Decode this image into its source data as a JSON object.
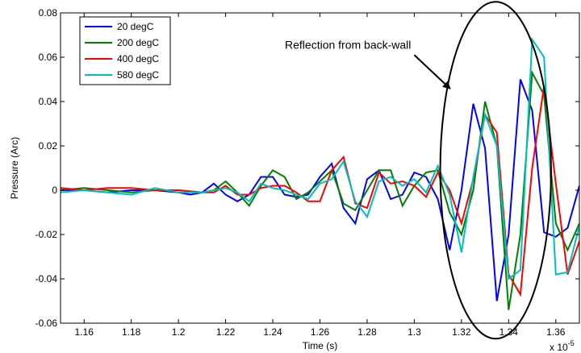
{
  "chart_data": {
    "type": "line",
    "xlabel": "Time (s)",
    "ylabel": "Pressure (Arc)",
    "x_multiplier_label": "x 10",
    "x_multiplier_exp": "-5",
    "xlim": [
      1.15,
      1.37
    ],
    "ylim": [
      -0.06,
      0.08
    ],
    "grid": false,
    "legend_position": "top-left",
    "xticks": [
      1.16,
      1.18,
      1.2,
      1.22,
      1.24,
      1.26,
      1.28,
      1.3,
      1.32,
      1.34,
      1.36
    ],
    "xtick_labels": [
      "1.16",
      "1.18",
      "1.2",
      "1.22",
      "1.24",
      "1.26",
      "1.28",
      "1.3",
      "1.32",
      "1.34",
      "1.36"
    ],
    "yticks": [
      -0.06,
      -0.04,
      -0.02,
      0,
      0.02,
      0.04,
      0.06,
      0.08
    ],
    "ytick_labels": [
      "-0.06",
      "-0.04",
      "-0.02",
      "0",
      "0.02",
      "0.04",
      "0.06",
      "0.08"
    ],
    "annotation": {
      "text": "Reflection from back-wall",
      "arrow_from": [
        1.3,
        0.061
      ],
      "arrow_to": [
        1.315,
        0.046
      ],
      "ellipse_center": [
        1.3345,
        0.009
      ],
      "ellipse_rx": 0.0235,
      "ellipse_ry": 0.076
    },
    "series": [
      {
        "name": "20 degC",
        "color": "#0000ff",
        "x": [
          1.15,
          1.16,
          1.17,
          1.18,
          1.19,
          1.2,
          1.205,
          1.21,
          1.215,
          1.22,
          1.225,
          1.23,
          1.235,
          1.24,
          1.245,
          1.25,
          1.255,
          1.26,
          1.265,
          1.27,
          1.275,
          1.28,
          1.285,
          1.29,
          1.295,
          1.3,
          1.305,
          1.31,
          1.315,
          1.32,
          1.325,
          1.33,
          1.335,
          1.34,
          1.345,
          1.35,
          1.355,
          1.36,
          1.365,
          1.37
        ],
        "y": [
          0.0,
          0.0,
          -0.001,
          0.0,
          0.0,
          -0.001,
          -0.002,
          -0.001,
          0.003,
          -0.002,
          -0.005,
          -0.002,
          0.006,
          0.006,
          -0.002,
          -0.003,
          -0.002,
          0.006,
          0.012,
          -0.008,
          -0.015,
          0.005,
          0.009,
          -0.004,
          -0.002,
          0.008,
          0.006,
          -0.004,
          -0.027,
          0.0,
          0.039,
          0.019,
          -0.05,
          -0.02,
          0.05,
          0.036,
          -0.019,
          -0.021,
          -0.017,
          0.002
        ]
      },
      {
        "name": "200 degC",
        "color": "#008000",
        "x": [
          1.15,
          1.16,
          1.17,
          1.18,
          1.19,
          1.2,
          1.21,
          1.215,
          1.22,
          1.225,
          1.23,
          1.235,
          1.24,
          1.245,
          1.25,
          1.255,
          1.26,
          1.265,
          1.27,
          1.275,
          1.28,
          1.285,
          1.29,
          1.295,
          1.3,
          1.305,
          1.31,
          1.315,
          1.32,
          1.325,
          1.33,
          1.335,
          1.34,
          1.345,
          1.35,
          1.355,
          1.36,
          1.365,
          1.37
        ],
        "y": [
          0.0,
          0.001,
          0.0,
          -0.001,
          0.0,
          0.0,
          -0.001,
          0.0,
          0.004,
          -0.001,
          -0.007,
          0.002,
          0.009,
          0.006,
          -0.004,
          -0.001,
          0.004,
          0.009,
          -0.006,
          -0.009,
          0.0,
          0.009,
          0.009,
          -0.007,
          0.002,
          0.008,
          0.009,
          -0.01,
          -0.02,
          0.0,
          0.04,
          0.02,
          -0.054,
          -0.02,
          0.053,
          0.043,
          -0.015,
          -0.027,
          -0.015
        ]
      },
      {
        "name": "400 degC",
        "color": "#ff0000",
        "x": [
          1.15,
          1.16,
          1.17,
          1.18,
          1.19,
          1.2,
          1.21,
          1.215,
          1.22,
          1.225,
          1.23,
          1.235,
          1.24,
          1.245,
          1.25,
          1.255,
          1.26,
          1.265,
          1.27,
          1.275,
          1.28,
          1.285,
          1.29,
          1.295,
          1.3,
          1.305,
          1.31,
          1.315,
          1.32,
          1.325,
          1.33,
          1.335,
          1.34,
          1.345,
          1.35,
          1.355,
          1.36,
          1.365,
          1.37
        ],
        "y": [
          0.001,
          0.0,
          0.001,
          0.001,
          0.0,
          0.0,
          -0.001,
          -0.001,
          0.002,
          -0.002,
          -0.002,
          0.001,
          0.002,
          0.002,
          -0.001,
          -0.005,
          -0.005,
          0.009,
          0.015,
          -0.006,
          -0.008,
          0.008,
          0.003,
          0.004,
          0.002,
          -0.003,
          0.008,
          0.0,
          -0.015,
          0.005,
          0.034,
          0.026,
          -0.038,
          -0.047,
          0.01,
          0.047,
          0.003,
          -0.038,
          -0.023
        ]
      },
      {
        "name": "580 degC",
        "color": "#00bfbf",
        "x": [
          1.15,
          1.16,
          1.17,
          1.18,
          1.19,
          1.2,
          1.21,
          1.215,
          1.22,
          1.225,
          1.23,
          1.235,
          1.24,
          1.245,
          1.25,
          1.255,
          1.26,
          1.265,
          1.27,
          1.275,
          1.28,
          1.285,
          1.29,
          1.295,
          1.3,
          1.305,
          1.31,
          1.315,
          1.32,
          1.325,
          1.33,
          1.335,
          1.34,
          1.345,
          1.35,
          1.355,
          1.36,
          1.365,
          1.37
        ],
        "y": [
          -0.001,
          0.0,
          -0.001,
          -0.002,
          0.001,
          -0.001,
          -0.001,
          0.0,
          0.001,
          -0.001,
          -0.005,
          0.003,
          0.001,
          0.0,
          -0.002,
          -0.004,
          0.003,
          0.005,
          0.013,
          -0.005,
          -0.012,
          0.004,
          0.006,
          0.002,
          0.005,
          -0.001,
          0.011,
          -0.002,
          -0.028,
          0.006,
          0.034,
          0.02,
          -0.04,
          -0.036,
          0.068,
          0.06,
          -0.038,
          -0.037,
          -0.016
        ]
      }
    ]
  }
}
